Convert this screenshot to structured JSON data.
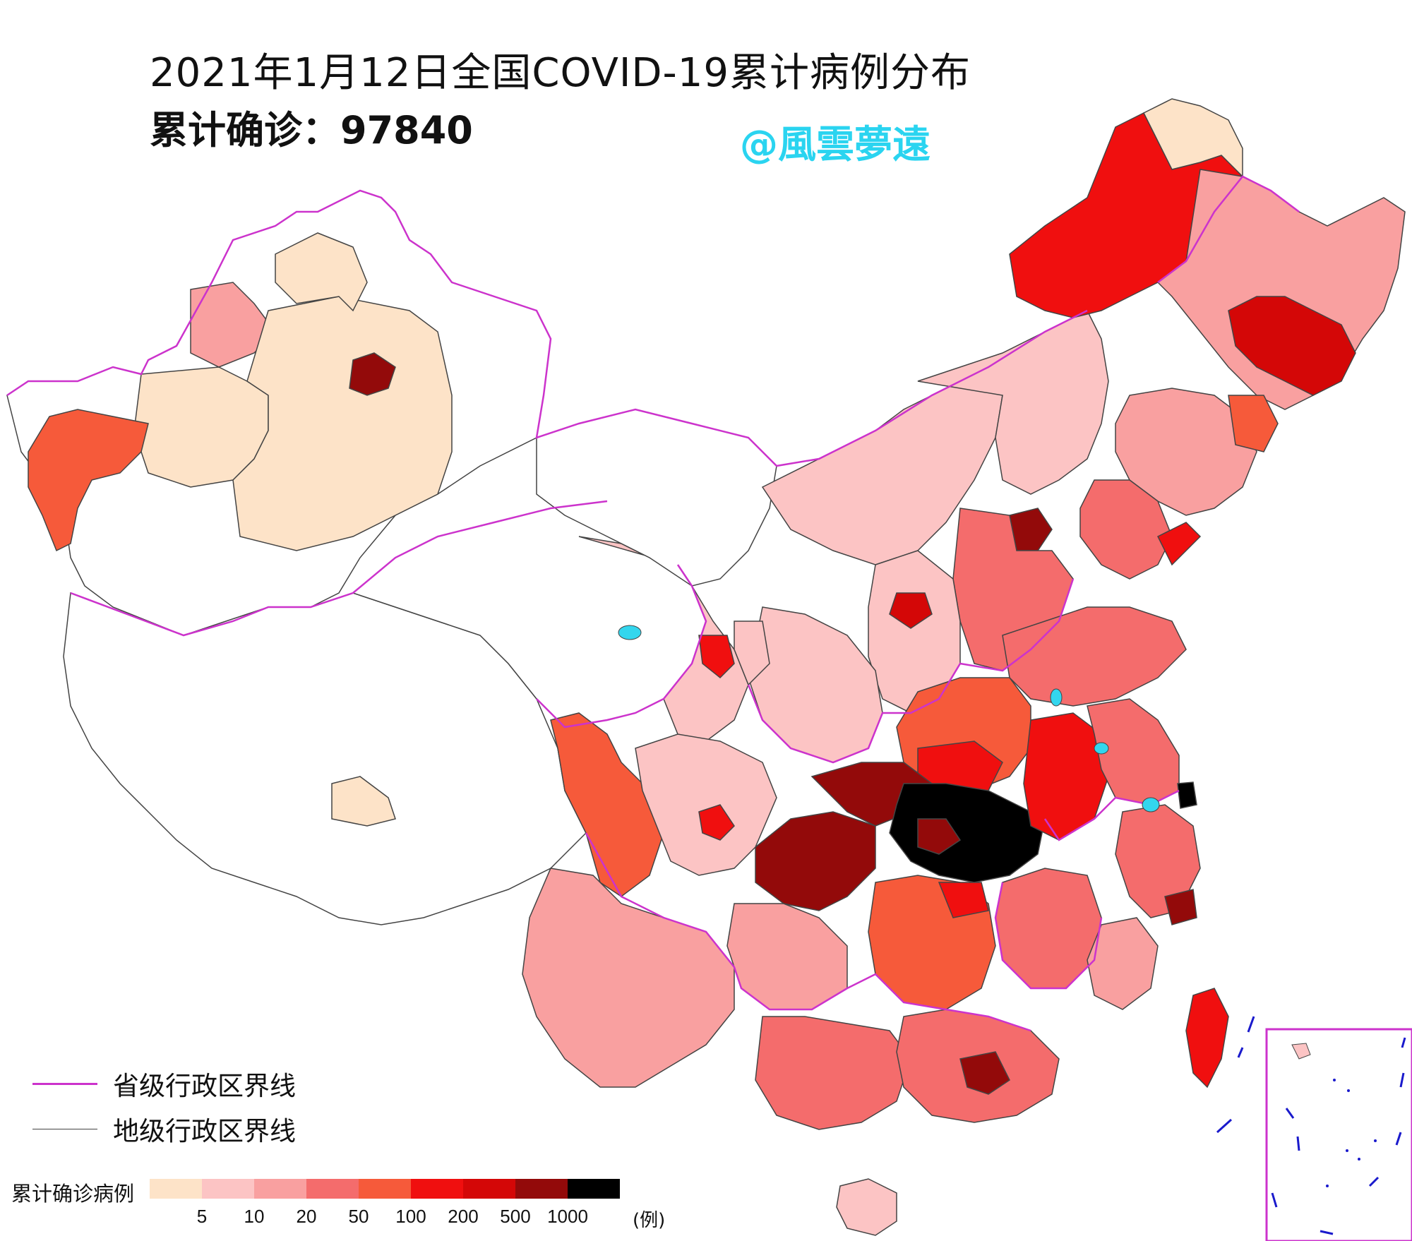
{
  "header": {
    "title": "2021年1月12日全国COVID-19累计病例分布",
    "total_line": "累计确诊：97840",
    "watermark": "@風雲夢遠"
  },
  "boundary_legend": {
    "provincial": {
      "label": "省级行政区界线",
      "color": "#cc33cc"
    },
    "prefectural": {
      "label": "地级行政区界线",
      "color": "#444444"
    }
  },
  "color_scale": {
    "title": "累计确诊病例",
    "unit": "(例)",
    "ticks": [
      "5",
      "10",
      "20",
      "50",
      "100",
      "200",
      "500",
      "1000"
    ],
    "colors": [
      "#fde3c8",
      "#fcc4c4",
      "#f9a0a0",
      "#f46c6c",
      "#f65a3a",
      "#f00f0f",
      "#d40707",
      "#930a0a",
      "#000000"
    ]
  },
  "map_colors": {
    "lake": "#33d6ee",
    "nine_dash": "#1a1acc"
  }
}
